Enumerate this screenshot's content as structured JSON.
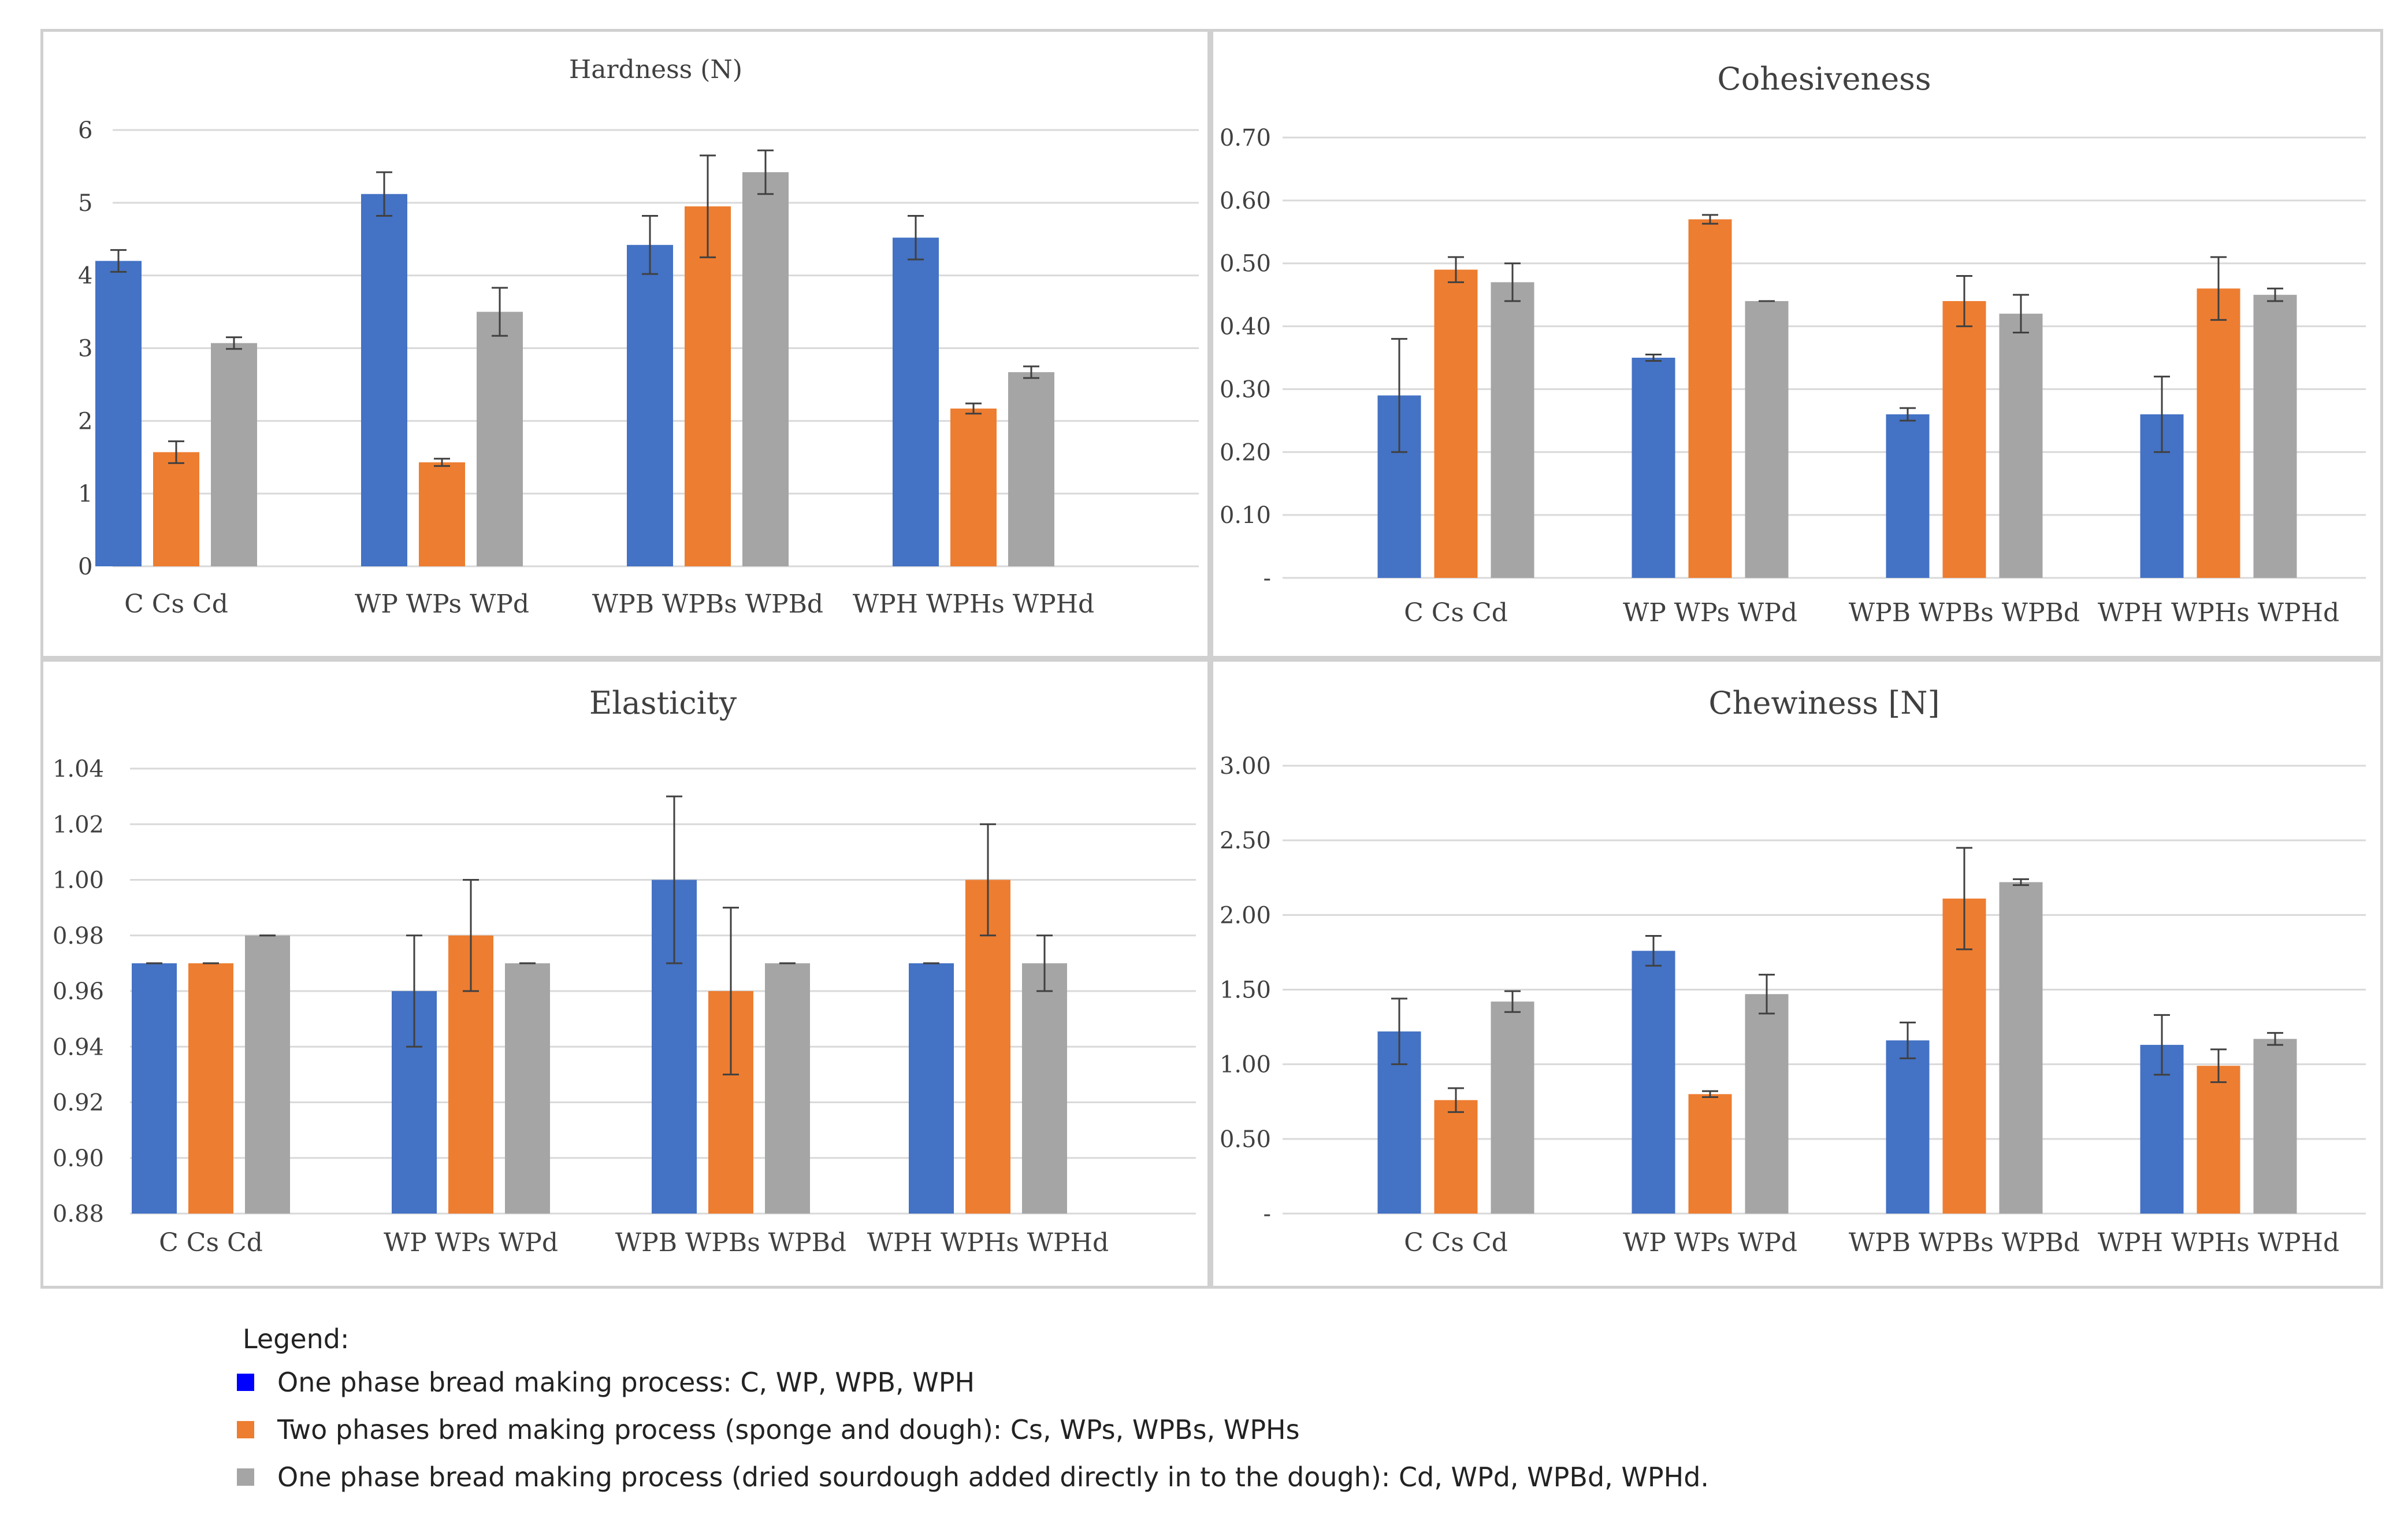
{
  "colors": {
    "one_phase": "#4472C4",
    "two_phase": "#ED7D31",
    "dried": "#A5A5A5",
    "grid": "#D9D9D9",
    "errbar": "#404040"
  },
  "chart_data": [
    {
      "type": "bar",
      "title": "Hardness (N)",
      "categories": [
        "C Cs Cd",
        "WP WPs WPd",
        "WPB WPBs WPBd",
        "WPH WPHs WPHd"
      ],
      "ylim": [
        0,
        6
      ],
      "yticks": [
        "0",
        "1",
        "2",
        "3",
        "4",
        "5",
        "6"
      ],
      "series": [
        {
          "name": "One phase",
          "values": [
            4.2,
            5.12,
            4.42,
            4.52
          ],
          "errors": [
            0.15,
            0.3,
            0.4,
            0.3
          ]
        },
        {
          "name": "Two phases",
          "values": [
            1.57,
            1.43,
            4.95,
            2.17
          ],
          "errors": [
            0.15,
            0.05,
            0.7,
            0.07
          ]
        },
        {
          "name": "Dried sourdough",
          "values": [
            3.07,
            3.5,
            5.42,
            2.67
          ],
          "errors": [
            0.08,
            0.33,
            0.3,
            0.08
          ]
        }
      ]
    },
    {
      "type": "bar",
      "title": "Cohesiveness",
      "categories": [
        "C Cs Cd",
        "WP WPs WPd",
        "WPB WPBs WPBd",
        "WPH WPHs WPHd"
      ],
      "ylim": [
        0,
        0.7
      ],
      "yticks": [
        "-",
        "0.10",
        "0.20",
        "0.30",
        "0.40",
        "0.50",
        "0.60",
        "0.70"
      ],
      "series": [
        {
          "name": "One phase",
          "values": [
            0.29,
            0.35,
            0.26,
            0.26
          ],
          "errors": [
            0.09,
            0.005,
            0.01,
            0.06
          ]
        },
        {
          "name": "Two phases",
          "values": [
            0.49,
            0.57,
            0.44,
            0.46
          ],
          "errors": [
            0.02,
            0.007,
            0.04,
            0.05
          ]
        },
        {
          "name": "Dried sourdough",
          "values": [
            0.47,
            0.44,
            0.42,
            0.45
          ],
          "errors": [
            0.03,
            0.0,
            0.03,
            0.01
          ]
        }
      ]
    },
    {
      "type": "bar",
      "title": "Elasticity",
      "categories": [
        "C Cs Cd",
        "WP WPs WPd",
        "WPB WPBs WPBd",
        "WPH WPHs WPHd"
      ],
      "ylim": [
        0.88,
        1.04
      ],
      "yticks": [
        "0.88",
        "0.90",
        "0.92",
        "0.94",
        "0.96",
        "0.98",
        "1.00",
        "1.02",
        "1.04"
      ],
      "series": [
        {
          "name": "One phase",
          "values": [
            0.97,
            0.96,
            1.0,
            0.97
          ],
          "errors": [
            0.0,
            0.02,
            0.03,
            0.0
          ]
        },
        {
          "name": "Two phases",
          "values": [
            0.97,
            0.98,
            0.96,
            1.0
          ],
          "errors": [
            0.0,
            0.02,
            0.03,
            0.02
          ]
        },
        {
          "name": "Dried sourdough",
          "values": [
            0.98,
            0.97,
            0.97,
            0.97
          ],
          "errors": [
            0.0,
            0.0,
            0.0,
            0.01
          ]
        }
      ]
    },
    {
      "type": "bar",
      "title": "Chewiness [N]",
      "categories": [
        "C Cs Cd",
        "WP WPs WPd",
        "WPB WPBs WPBd",
        "WPH WPHs WPHd"
      ],
      "ylim": [
        0,
        3
      ],
      "yticks": [
        "-",
        "0.50",
        "1.00",
        "1.50",
        "2.00",
        "2.50",
        "3.00"
      ],
      "series": [
        {
          "name": "One phase",
          "values": [
            1.22,
            1.76,
            1.16,
            1.13
          ],
          "errors": [
            0.22,
            0.1,
            0.12,
            0.2
          ]
        },
        {
          "name": "Two phases",
          "values": [
            0.76,
            0.8,
            2.11,
            0.99
          ],
          "errors": [
            0.08,
            0.02,
            0.34,
            0.11
          ]
        },
        {
          "name": "Dried sourdough",
          "values": [
            1.42,
            1.47,
            2.22,
            1.17
          ],
          "errors": [
            0.07,
            0.13,
            0.02,
            0.04
          ]
        }
      ]
    }
  ],
  "legend": {
    "title": "Legend:",
    "items": [
      {
        "label": "One phase bread making process: C, WP, WPB, WPH",
        "color": "#0000FF"
      },
      {
        "label": "Two phases bred making process (sponge and dough): Cs, WPs, WPBs, WPHs",
        "color": "#ED7D31"
      },
      {
        "label": "One phase bread making process (dried sourdough added directly in to the dough): Cd, WPd, WPBd, WPHd.",
        "color": "#A5A5A5"
      }
    ]
  }
}
